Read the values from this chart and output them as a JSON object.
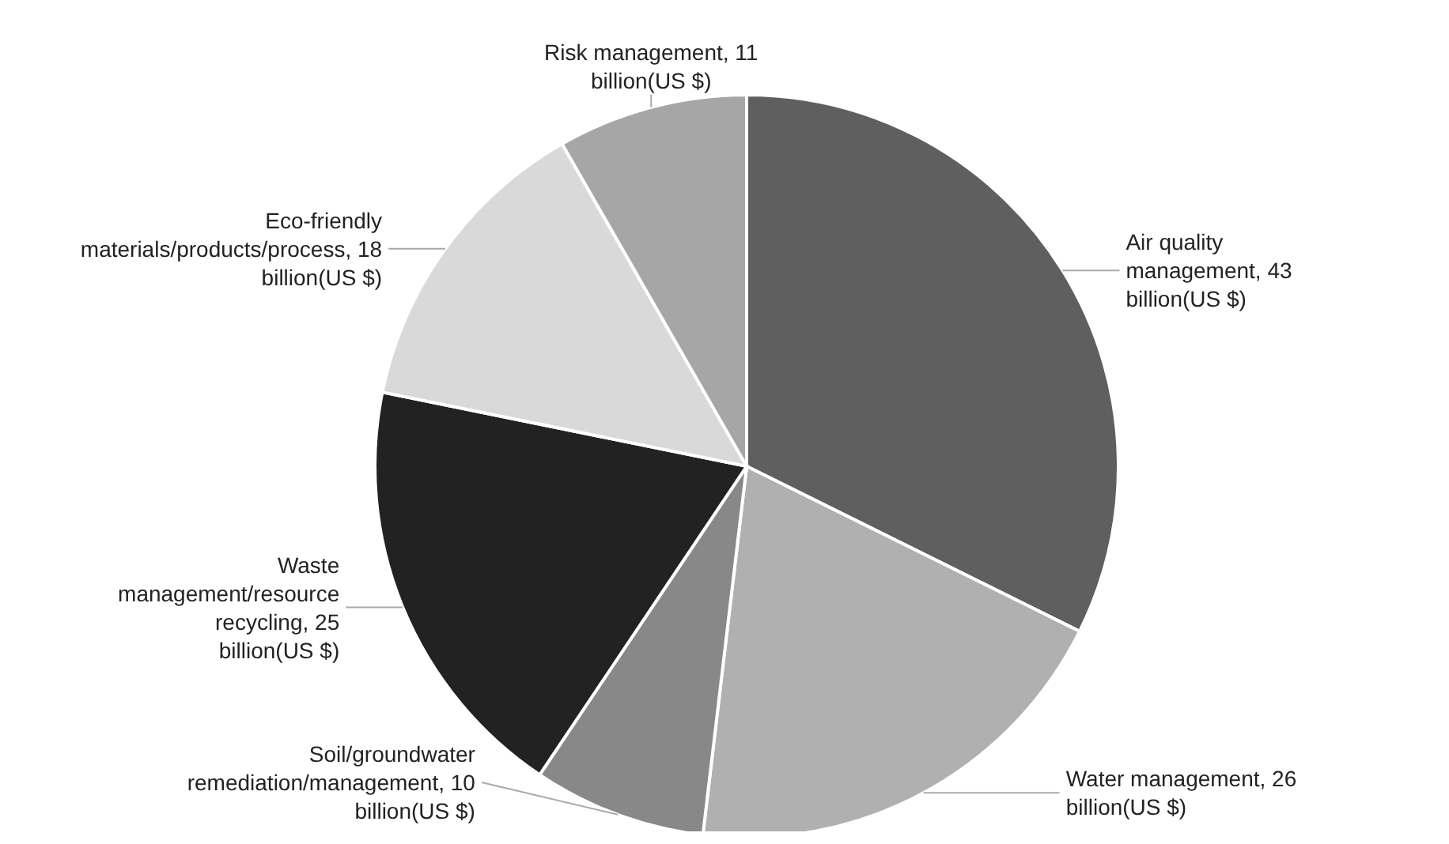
{
  "chart_data": {
    "type": "pie",
    "categories": [
      "Air quality management",
      "Water management",
      "Soil/groundwater remediation/management",
      "Waste management/resource recycling",
      "Eco-friendly materials/products/process",
      "Risk management"
    ],
    "values": [
      43,
      26,
      10,
      25,
      18,
      11
    ],
    "value_labels": [
      "43 billion(US $)",
      "26 billion(US $)",
      "10 billion(US $)",
      "25 billion(US $)",
      "18 billion(US $)",
      "11 billion(US $)"
    ],
    "colors": [
      "#5f5f5f",
      "#b0b0b0",
      "#888888",
      "#222222",
      "#d9d9d9",
      "#a6a6a6"
    ],
    "legend": false
  }
}
